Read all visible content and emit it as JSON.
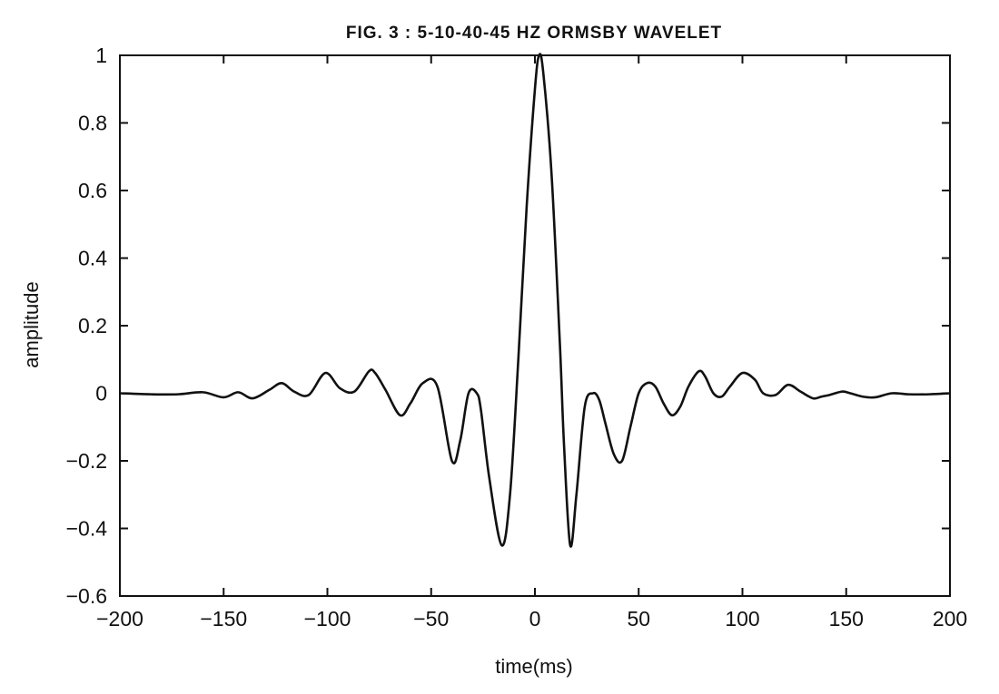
{
  "chart_data": {
    "type": "line",
    "title": "FIG. 3 : 5-10-40-45 HZ ORMSBY WAVELET",
    "xlabel": "time(ms)",
    "ylabel": "amplitude",
    "xlim": [
      -200,
      200
    ],
    "ylim": [
      -0.6,
      1
    ],
    "grid": false,
    "x_ticks": [
      -200,
      -150,
      -100,
      -50,
      0,
      50,
      100,
      150,
      200
    ],
    "x_tick_labels": [
      "−200",
      "−150",
      "−100",
      "−50",
      "0",
      "50",
      "100",
      "150",
      "200"
    ],
    "y_ticks": [
      -0.6,
      -0.4,
      -0.2,
      0,
      0.2,
      0.4,
      0.6,
      0.8,
      1
    ],
    "y_tick_labels": [
      "−0.6",
      "−0.4",
      "−0.2",
      "0",
      "0.2",
      "0.4",
      "0.6",
      "0.8",
      "1"
    ],
    "series": [
      {
        "color": "#111111",
        "x": [
          -200,
          -185,
          -172,
          -160,
          -150,
          -143,
          -136,
          -128,
          -122,
          -116,
          -109,
          -101,
          -94,
          -87,
          -80,
          -77,
          -72,
          -65,
          -60,
          -54,
          -47,
          -40,
          -36,
          -32,
          -28,
          -26,
          -22,
          -16,
          -12,
          -8,
          -4,
          0,
          2,
          4,
          8,
          12,
          14,
          17,
          20,
          24,
          28,
          31,
          34,
          38,
          42,
          46,
          50,
          54,
          58,
          62,
          66,
          70,
          74,
          79,
          82,
          86,
          90,
          94,
          100,
          106,
          110,
          116,
          122,
          128,
          134,
          138,
          142,
          148,
          152,
          158,
          164,
          172,
          180,
          190,
          200
        ],
        "y": [
          0,
          -0.003,
          -0.003,
          0.003,
          -0.012,
          0.003,
          -0.015,
          0.01,
          0.03,
          0.005,
          -0.005,
          0.06,
          0.015,
          0.005,
          0.065,
          0.06,
          0.01,
          -0.065,
          -0.03,
          0.03,
          0.02,
          -0.2,
          -0.14,
          0.0,
          0.0,
          -0.05,
          -0.25,
          -0.45,
          -0.3,
          0.1,
          0.55,
          0.9,
          1.0,
          0.95,
          0.65,
          0.15,
          -0.15,
          -0.45,
          -0.3,
          -0.04,
          0.0,
          -0.02,
          -0.09,
          -0.18,
          -0.2,
          -0.1,
          0.0,
          0.03,
          0.02,
          -0.03,
          -0.065,
          -0.04,
          0.02,
          0.065,
          0.05,
          0.0,
          -0.01,
          0.02,
          0.06,
          0.04,
          0.0,
          -0.005,
          0.025,
          0.005,
          -0.015,
          -0.01,
          -0.005,
          0.005,
          0.0,
          -0.01,
          -0.012,
          0.0,
          -0.003,
          -0.003,
          0
        ]
      }
    ]
  }
}
